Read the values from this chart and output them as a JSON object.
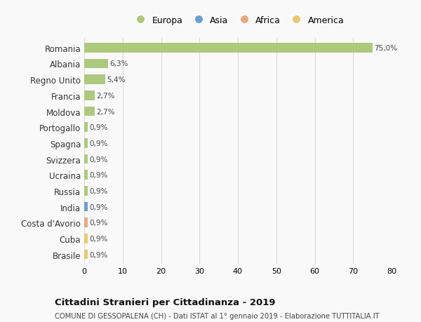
{
  "countries": [
    "Romania",
    "Albania",
    "Regno Unito",
    "Francia",
    "Moldova",
    "Portogallo",
    "Spagna",
    "Svizzera",
    "Ucraina",
    "Russia",
    "India",
    "Costa d'Avorio",
    "Cuba",
    "Brasile"
  ],
  "values": [
    75.0,
    6.3,
    5.4,
    2.7,
    2.7,
    0.9,
    0.9,
    0.9,
    0.9,
    0.9,
    0.9,
    0.9,
    0.9,
    0.9
  ],
  "labels": [
    "75,0%",
    "6,3%",
    "5,4%",
    "2,7%",
    "2,7%",
    "0,9%",
    "0,9%",
    "0,9%",
    "0,9%",
    "0,9%",
    "0,9%",
    "0,9%",
    "0,9%",
    "0,9%"
  ],
  "colors": [
    "#adc97e",
    "#adc97e",
    "#adc97e",
    "#adc97e",
    "#adc97e",
    "#adc97e",
    "#adc97e",
    "#adc97e",
    "#adc97e",
    "#adc97e",
    "#6b9fcf",
    "#e8a882",
    "#e8c870",
    "#e8c870"
  ],
  "legend": [
    {
      "label": "Europa",
      "color": "#adc97e"
    },
    {
      "label": "Asia",
      "color": "#6b9fcf"
    },
    {
      "label": "Africa",
      "color": "#e8a882"
    },
    {
      "label": "America",
      "color": "#e8c870"
    }
  ],
  "xlim": [
    0,
    80
  ],
  "xticks": [
    0,
    10,
    20,
    30,
    40,
    50,
    60,
    70,
    80
  ],
  "title": "Cittadini Stranieri per Cittadinanza - 2019",
  "subtitle": "COMUNE DI GESSOPALENA (CH) - Dati ISTAT al 1° gennaio 2019 - Elaborazione TUTTITALIA.IT",
  "bg_color": "#f9f9f9",
  "grid_color": "#d8d8d8",
  "bar_height": 0.6
}
